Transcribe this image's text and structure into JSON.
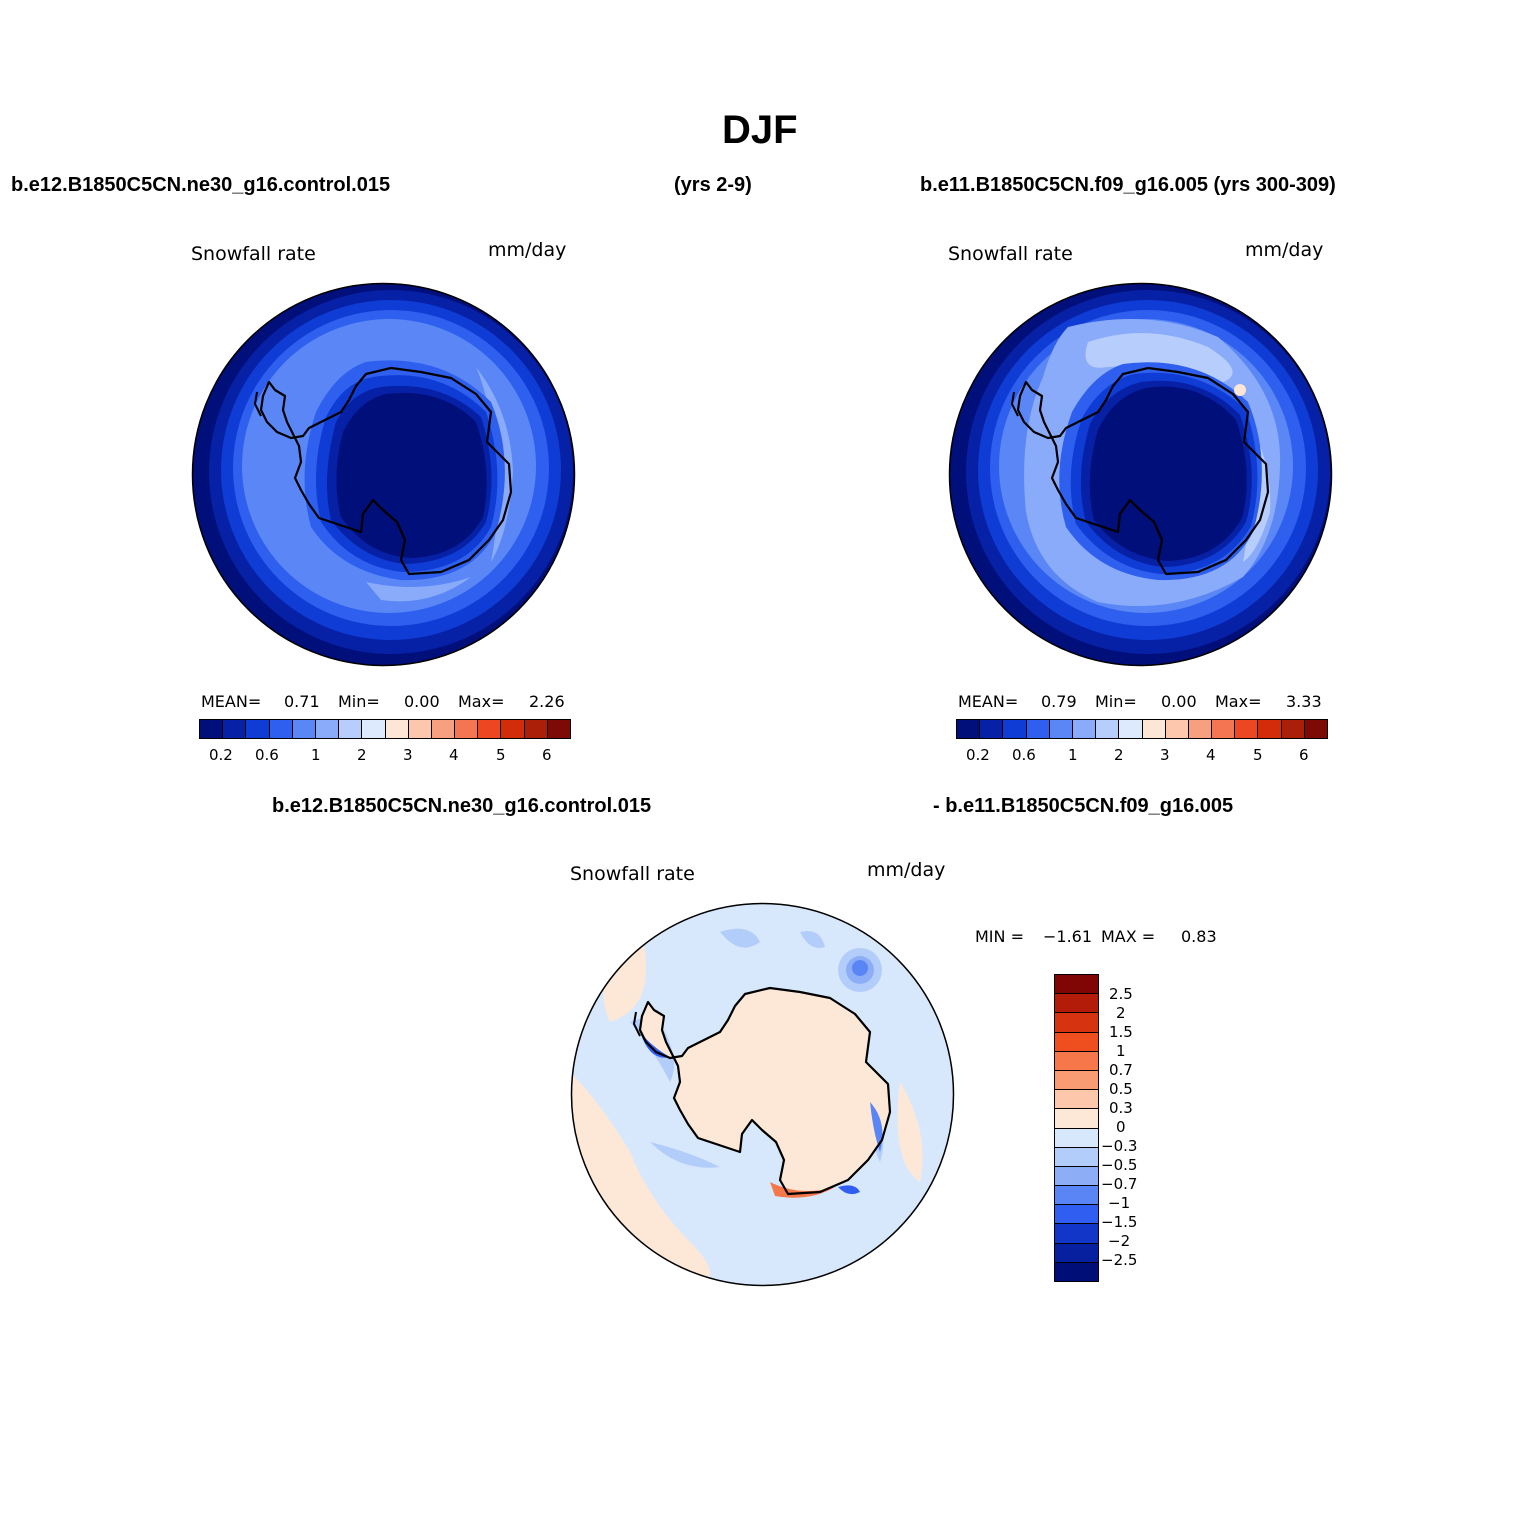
{
  "figure": {
    "title": "DJF",
    "case1_label": "b.e12.B1850C5CN.ne30_g16.control.015",
    "case1_years": "(yrs 2-9)",
    "case2_label": "b.e11.B1850C5CN.f09_g16.005 (yrs 300-309)",
    "diff_label_left": "b.e12.B1850C5CN.ne30_g16.control.015",
    "diff_label_right": "- b.e11.B1850C5CN.f09_g16.005"
  },
  "panels": [
    {
      "variable": "Snowfall rate",
      "units": "mm/day",
      "mean_label": "MEAN=",
      "mean_value": "0.71",
      "min_label": "Min=",
      "min_value": "0.00",
      "max_label": "Max=",
      "max_value": "2.26"
    },
    {
      "variable": "Snowfall rate",
      "units": "mm/day",
      "mean_label": "MEAN=",
      "mean_value": "0.79",
      "min_label": "Min=",
      "min_value": "0.00",
      "max_label": "Max=",
      "max_value": "3.33"
    },
    {
      "variable": "Snowfall rate",
      "units": "mm/day",
      "min_label": "MIN =",
      "min_value": "−1.61",
      "max_label": "MAX =",
      "max_value": "0.83"
    }
  ],
  "colorbar_abs": {
    "ticks": [
      "0.2",
      "0.6",
      "1",
      "2",
      "3",
      "4",
      "5",
      "6"
    ],
    "colors": [
      "#000f7a",
      "#0620a6",
      "#0f3cd4",
      "#2e5fee",
      "#5a86f6",
      "#8aabfa",
      "#b7cdfc",
      "#dde9fd",
      "#fde6d6",
      "#fcc7ad",
      "#f7a07f",
      "#f37552",
      "#ec4623",
      "#d22c0a",
      "#ab1e07",
      "#7d0a05"
    ]
  },
  "colorbar_diff": {
    "ticks": [
      "2.5",
      "2",
      "1.5",
      "1",
      "0.7",
      "0.5",
      "0.3",
      "0",
      "−0.3",
      "−0.5",
      "−0.7",
      "−1",
      "−1.5",
      "−2",
      "−2.5"
    ],
    "colors": [
      "#800505",
      "#b31c08",
      "#d63410",
      "#ef4e1f",
      "#f6784a",
      "#f99c73",
      "#fcc7ab",
      "#fde8d8",
      "#d8e8fc",
      "#b3cdfa",
      "#8dadf7",
      "#5a86f5",
      "#2f5ef0",
      "#1237c8",
      "#0620a0",
      "#000f78"
    ]
  }
}
